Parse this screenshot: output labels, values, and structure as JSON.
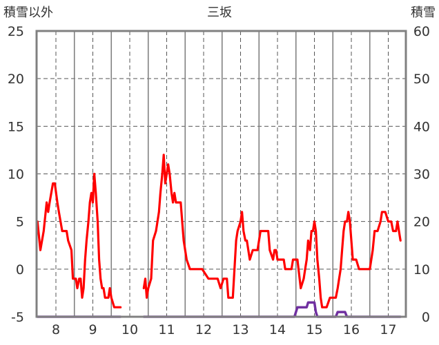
{
  "chart_data": {
    "type": "line",
    "title": "三坂",
    "left_axis_label": "積雪以外",
    "right_axis_label": "積雪",
    "x_ticks": [
      "8",
      "9",
      "10",
      "11",
      "12",
      "13",
      "14",
      "15",
      "16",
      "17"
    ],
    "ylim_left": [
      -5,
      25
    ],
    "yticks_left": [
      -5,
      0,
      5,
      10,
      15,
      20,
      25
    ],
    "ylim_right": [
      0,
      60
    ],
    "yticks_right": [
      0,
      10,
      20,
      30,
      40,
      50,
      60
    ],
    "grid": "dashed vertical and horizontal",
    "colors": {
      "temperature": "#ff0000",
      "snow": "#7030a0",
      "frame": "#808080",
      "grid": "#555555"
    },
    "series": [
      {
        "axis": "left",
        "color": "#ff0000",
        "segments": [
          [
            [
              7.5,
              5
            ],
            [
              7.58,
              2
            ],
            [
              7.67,
              4
            ],
            [
              7.75,
              7
            ],
            [
              7.79,
              6
            ],
            [
              7.83,
              7
            ],
            [
              7.92,
              9
            ],
            [
              7.97,
              9
            ],
            [
              8.04,
              7
            ],
            [
              8.08,
              6
            ],
            [
              8.17,
              4
            ],
            [
              8.29,
              4
            ],
            [
              8.33,
              3
            ],
            [
              8.42,
              2
            ],
            [
              8.46,
              -1
            ],
            [
              8.54,
              -1
            ],
            [
              8.58,
              -2
            ],
            [
              8.63,
              -1
            ],
            [
              8.67,
              -1
            ],
            [
              8.71,
              -3
            ],
            [
              8.75,
              -2
            ],
            [
              8.79,
              1
            ],
            [
              8.83,
              3
            ],
            [
              8.88,
              5
            ],
            [
              8.92,
              7
            ],
            [
              8.96,
              8
            ],
            [
              9.0,
              7
            ],
            [
              9.04,
              10
            ],
            [
              9.08,
              8
            ],
            [
              9.13,
              5
            ],
            [
              9.17,
              1
            ],
            [
              9.21,
              -1
            ],
            [
              9.25,
              -2
            ],
            [
              9.29,
              -2
            ],
            [
              9.33,
              -3
            ],
            [
              9.42,
              -3
            ],
            [
              9.46,
              -2
            ],
            [
              9.5,
              -3
            ],
            [
              9.58,
              -4
            ],
            [
              9.75,
              -4
            ]
          ],
          [
            [
              10.38,
              -2
            ],
            [
              10.42,
              -1
            ],
            [
              10.46,
              -3
            ],
            [
              10.5,
              -2
            ],
            [
              10.58,
              -1
            ],
            [
              10.63,
              3
            ],
            [
              10.71,
              4
            ],
            [
              10.79,
              6
            ],
            [
              10.83,
              8
            ],
            [
              10.88,
              10
            ],
            [
              10.92,
              12
            ],
            [
              10.96,
              9
            ],
            [
              11.04,
              11
            ],
            [
              11.08,
              10
            ],
            [
              11.13,
              8
            ],
            [
              11.17,
              7
            ],
            [
              11.21,
              8
            ],
            [
              11.25,
              7
            ],
            [
              11.38,
              7
            ],
            [
              11.46,
              3
            ],
            [
              11.54,
              1
            ],
            [
              11.63,
              0
            ],
            [
              11.79,
              0
            ],
            [
              11.96,
              0
            ],
            [
              12.13,
              -1
            ],
            [
              12.38,
              -1
            ],
            [
              12.46,
              -2
            ],
            [
              12.54,
              -1
            ],
            [
              12.63,
              -1
            ],
            [
              12.67,
              -3
            ],
            [
              12.79,
              -3
            ],
            [
              12.88,
              3
            ],
            [
              12.92,
              4
            ],
            [
              13.0,
              5
            ],
            [
              13.04,
              6
            ],
            [
              13.08,
              4
            ],
            [
              13.13,
              3
            ],
            [
              13.17,
              3
            ],
            [
              13.25,
              1
            ],
            [
              13.33,
              2
            ],
            [
              13.46,
              2
            ],
            [
              13.54,
              4
            ],
            [
              13.75,
              4
            ],
            [
              13.79,
              2
            ],
            [
              13.88,
              1
            ],
            [
              13.92,
              2
            ],
            [
              13.96,
              2
            ],
            [
              14.0,
              1
            ],
            [
              14.17,
              1
            ],
            [
              14.21,
              0
            ],
            [
              14.38,
              0
            ],
            [
              14.42,
              1
            ],
            [
              14.54,
              1
            ],
            [
              14.63,
              -2
            ],
            [
              14.71,
              -1
            ],
            [
              14.75,
              0
            ],
            [
              14.79,
              1
            ],
            [
              14.83,
              3
            ],
            [
              14.88,
              2
            ],
            [
              14.92,
              4
            ],
            [
              14.96,
              4
            ],
            [
              15.0,
              5
            ],
            [
              15.04,
              4
            ],
            [
              15.08,
              1
            ],
            [
              15.13,
              -1
            ],
            [
              15.17,
              -3
            ],
            [
              15.21,
              -4
            ],
            [
              15.33,
              -4
            ],
            [
              15.42,
              -3
            ],
            [
              15.58,
              -3
            ],
            [
              15.63,
              -2
            ],
            [
              15.67,
              -1
            ],
            [
              15.71,
              0
            ],
            [
              15.75,
              2
            ],
            [
              15.79,
              4
            ],
            [
              15.83,
              5
            ],
            [
              15.88,
              5
            ],
            [
              15.92,
              6
            ],
            [
              15.96,
              5
            ],
            [
              16.0,
              3
            ],
            [
              16.04,
              1
            ],
            [
              16.13,
              1
            ],
            [
              16.21,
              0
            ],
            [
              16.5,
              0
            ],
            [
              16.54,
              1
            ],
            [
              16.58,
              2
            ],
            [
              16.63,
              4
            ],
            [
              16.71,
              4
            ],
            [
              16.79,
              5
            ],
            [
              16.83,
              6
            ],
            [
              16.92,
              6
            ],
            [
              17.0,
              5
            ],
            [
              17.08,
              5
            ],
            [
              17.13,
              4
            ],
            [
              17.21,
              4
            ],
            [
              17.25,
              5
            ],
            [
              17.29,
              4
            ],
            [
              17.33,
              3
            ]
          ]
        ]
      },
      {
        "axis": "right",
        "color": "#7030a0",
        "segments": [
          [
            [
              7.5,
              0
            ],
            [
              9.75,
              0
            ]
          ],
          [
            [
              10.38,
              0
            ],
            [
              14.46,
              0
            ],
            [
              14.54,
              2
            ],
            [
              14.79,
              2
            ],
            [
              14.83,
              3
            ],
            [
              15.0,
              3
            ],
            [
              15.04,
              1
            ],
            [
              15.08,
              0
            ],
            [
              15.58,
              0
            ],
            [
              15.63,
              1
            ],
            [
              15.83,
              1
            ],
            [
              15.88,
              0
            ],
            [
              17.33,
              0
            ]
          ]
        ]
      }
    ]
  }
}
